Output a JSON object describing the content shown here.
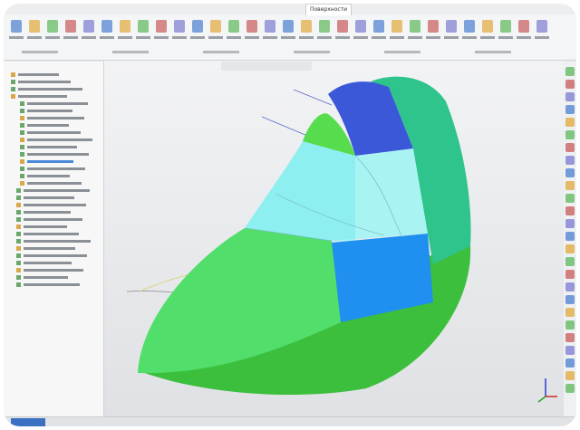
{
  "ribbon": {
    "active_tab": "Поверхности"
  }
}
